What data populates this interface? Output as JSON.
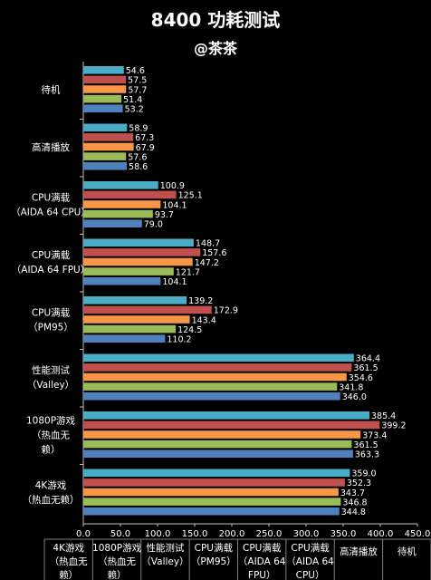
{
  "chart_data": {
    "type": "bar",
    "orientation": "horizontal",
    "title": "8400 功耗测试",
    "subtitle": "@茶茶",
    "xlim": [
      0,
      450
    ],
    "xticks": [
      "0.0",
      "50.0",
      "100.0",
      "150.0",
      "200.0",
      "250.0",
      "300.0",
      "350.0",
      "400.0",
      "450.0"
    ],
    "grid": false,
    "categories": [
      {
        "lines": [
          "待机"
        ]
      },
      {
        "lines": [
          "高清播放"
        ]
      },
      {
        "lines": [
          "CPU满载",
          "（AIDA 64 CPU）"
        ]
      },
      {
        "lines": [
          "CPU满载",
          "（AIDA 64 FPU）"
        ]
      },
      {
        "lines": [
          "CPU满载",
          "（PM95）"
        ]
      },
      {
        "lines": [
          "性能测试",
          "（Valley）"
        ]
      },
      {
        "lines": [
          "1080P游戏",
          "（热血无",
          "赖）"
        ]
      },
      {
        "lines": [
          "4K游戏",
          "（热血无赖）"
        ]
      }
    ],
    "series": [
      {
        "color": "#4bacc6",
        "values": [
          54.6,
          58.9,
          100.9,
          148.7,
          139.2,
          364.4,
          385.4,
          359.0
        ]
      },
      {
        "color": "#c0504d",
        "values": [
          57.5,
          67.3,
          125.1,
          157.6,
          172.9,
          361.5,
          399.2,
          352.3
        ]
      },
      {
        "color": "#f79646",
        "values": [
          57.7,
          67.9,
          104.1,
          147.2,
          143.4,
          354.6,
          373.4,
          343.7
        ]
      },
      {
        "color": "#9bbb59",
        "values": [
          51.4,
          57.6,
          93.7,
          121.7,
          124.5,
          341.8,
          361.5,
          346.8
        ]
      },
      {
        "color": "#4f81bd",
        "values": [
          53.2,
          58.6,
          79.0,
          104.1,
          110.2,
          346.0,
          363.3,
          344.8
        ]
      }
    ],
    "table_columns": [
      [
        "4K游戏",
        "（热血无",
        "赖）"
      ],
      [
        "1080P游戏",
        "（热血无",
        "赖）"
      ],
      [
        "性能测试",
        "（Valley）"
      ],
      [
        "CPU满载",
        "（PM95）"
      ],
      [
        "CPU满载",
        "（AIDA 64",
        "FPU）"
      ],
      [
        "CPU满载",
        "（AIDA 64",
        "CPU）"
      ],
      [
        "高清播放"
      ],
      [
        "待机"
      ]
    ]
  }
}
